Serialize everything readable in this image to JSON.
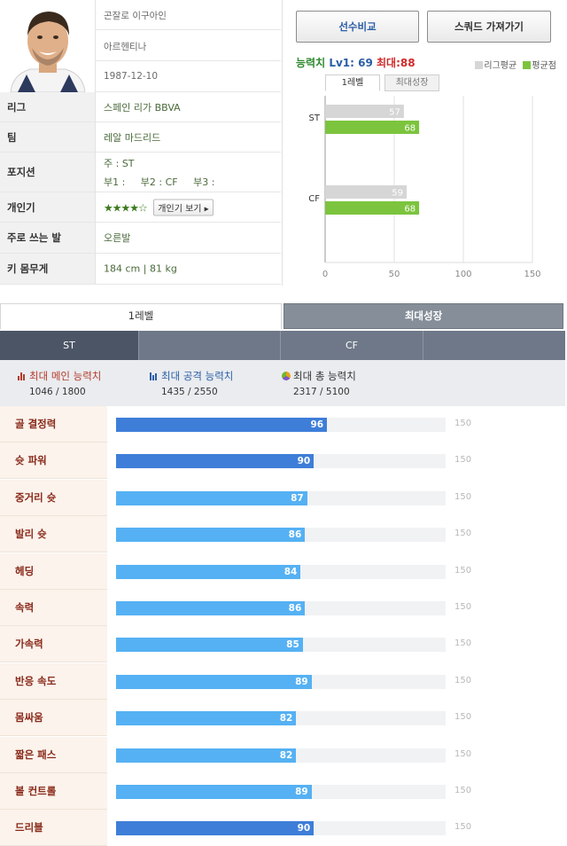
{
  "profile": {
    "name": "곤잘로 이구아인",
    "nationality": "아르헨티나",
    "birthdate": "1987-12-10",
    "rows": [
      {
        "label": "리그",
        "value": "스페인 리가 BBVA"
      },
      {
        "label": "팀",
        "value": "레알 마드리드"
      },
      {
        "label": "포지션",
        "main": "주 : ST",
        "sub": "부1 :     부2 : CF     부3 :"
      },
      {
        "label": "개인기",
        "stars": "★★★★☆",
        "button": "개인기 보기 ▸"
      },
      {
        "label": "주로 쓰는 발",
        "value": "오른발"
      },
      {
        "label": "키 몸무게",
        "value": "184 cm | 81 kg"
      }
    ]
  },
  "panel": {
    "compare_button": "선수비교",
    "squad_button": "스쿼드 가져가기",
    "ability_label": "능력치",
    "level_text": "Lv1: 69",
    "max_text": "최대:88",
    "legend_league": "리그평균",
    "legend_avg": "평균점",
    "color_league": "#d6d6d6",
    "color_avg": "#7cc43e",
    "tab_level1": "1레벨",
    "tab_maxgrowth": "최대성장"
  },
  "chart_data": {
    "type": "bar",
    "orientation": "horizontal",
    "categories": [
      "ST",
      "CF"
    ],
    "series": [
      {
        "name": "리그평균",
        "values": [
          57,
          59
        ],
        "color": "#d6d6d6"
      },
      {
        "name": "평균점",
        "values": [
          68,
          68
        ],
        "color": "#7cc43e"
      }
    ],
    "xlim": [
      0,
      150
    ],
    "xticks": [
      0,
      50,
      100,
      150
    ],
    "grid": true,
    "legend": "top-right"
  },
  "level_tabs": {
    "level1": "1레벨",
    "max": "최대성장"
  },
  "positions": [
    "ST",
    "",
    "CF",
    ""
  ],
  "summary": [
    {
      "title": "최대 메인 능력치",
      "value": "1046 / 1800"
    },
    {
      "title": "최대 공격 능력치",
      "value": "1435 / 2550"
    },
    {
      "title": "최대 총 능력치",
      "value": "2317 / 5100"
    }
  ],
  "stat_max": 150,
  "stat_max_label": "150",
  "stats": [
    {
      "label": "골 결정력",
      "value": 96,
      "main": true
    },
    {
      "label": "슛 파워",
      "value": 90,
      "main": true
    },
    {
      "label": "중거리 슛",
      "value": 87,
      "main": false
    },
    {
      "label": "발리 슛",
      "value": 86,
      "main": false
    },
    {
      "label": "헤딩",
      "value": 84,
      "main": false
    },
    {
      "label": "속력",
      "value": 86,
      "main": false
    },
    {
      "label": "가속력",
      "value": 85,
      "main": false
    },
    {
      "label": "반응 속도",
      "value": 89,
      "main": false
    },
    {
      "label": "몸싸움",
      "value": 82,
      "main": false
    },
    {
      "label": "짧은 패스",
      "value": 82,
      "main": false
    },
    {
      "label": "볼 컨트롤",
      "value": 89,
      "main": false
    },
    {
      "label": "드리블",
      "value": 90,
      "main": true
    }
  ],
  "colors": {
    "main_bar": "#3e7ed8",
    "sub_bar": "#55b1f3"
  }
}
